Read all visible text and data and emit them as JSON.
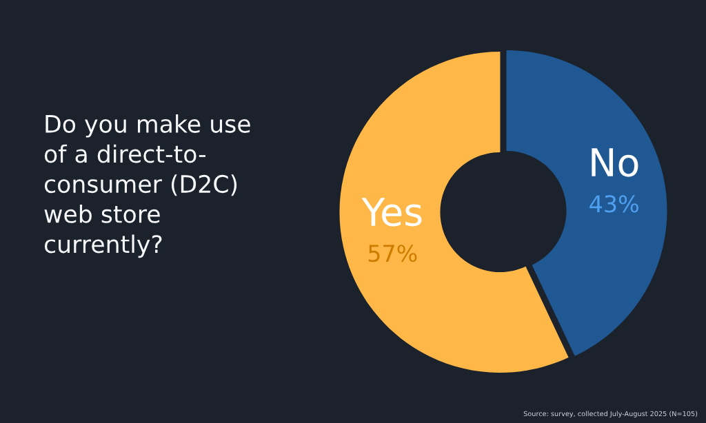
{
  "chart_data": {
    "type": "donut",
    "title": "Do you make use\nof a direct-to-\nconsumer (D2C)\nweb store\ncurrently?",
    "categories": [
      "Yes",
      "No"
    ],
    "values": [
      57,
      43
    ],
    "colors": [
      "#ffb848",
      "#1f5892"
    ],
    "value_labels": [
      "57%",
      "43%"
    ],
    "annotations": [
      "Source: survey, collected July-August 2025 (N=105)"
    ]
  }
}
